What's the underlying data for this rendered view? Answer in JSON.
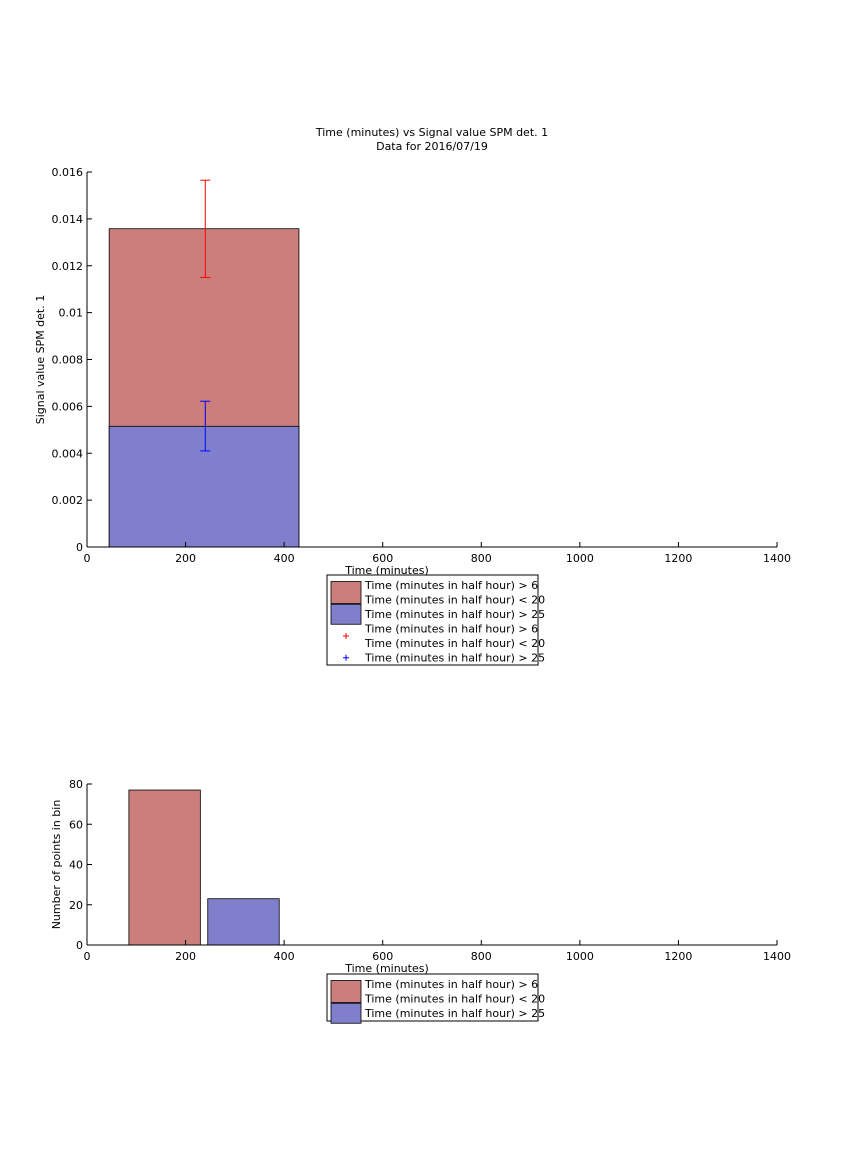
{
  "page": {
    "title_line1": "Time (minutes) vs Signal value SPM det. 1",
    "title_line2": "Data for 2016/07/19"
  },
  "colors": {
    "red_fill": "#ca7f7c",
    "blue_fill": "#7f7fcb",
    "red_err": "#ff0000",
    "blue_err": "#0000ff",
    "axis": "#000000"
  },
  "chart_data": [
    {
      "type": "bar",
      "stacked": true,
      "title": "Time (minutes) vs Signal value SPM det. 1",
      "subtitle": "Data for 2016/07/19",
      "xlabel": "Time (minutes)",
      "ylabel": "Signal value SPM det. 1",
      "xlim": [
        0,
        1400
      ],
      "ylim": [
        0,
        0.016
      ],
      "xticks": [
        0,
        200,
        400,
        600,
        800,
        1000,
        1200,
        1400
      ],
      "yticks": [
        0,
        0.002,
        0.004,
        0.006,
        0.008,
        0.01,
        0.012,
        0.014,
        0.016
      ],
      "xtick_labels": [
        "0",
        "200",
        "400",
        "600",
        "800",
        "1000",
        "1200",
        "1400"
      ],
      "ytick_labels": [
        "0",
        "0.002",
        "0.004",
        "0.006",
        "0.008",
        "0.01",
        "0.012",
        "0.014",
        "0.016"
      ],
      "bars": [
        {
          "series": 0,
          "x_start": 45,
          "x_end": 430,
          "y_base": 0,
          "y_top": 0.01358
        },
        {
          "series": 1,
          "x_start": 45,
          "x_end": 430,
          "y_base": 0,
          "y_top": 0.00515
        }
      ],
      "errorbars": [
        {
          "series": 0,
          "x": 240,
          "y_low": 0.0115,
          "y_high": 0.01565
        },
        {
          "series": 1,
          "x": 240,
          "y_low": 0.0041,
          "y_high": 0.00622
        }
      ],
      "series": [
        {
          "name": "Time (minutes in half hour) > 6\nTime (minutes in half hour) < 20",
          "color": "#ca7f7c"
        },
        {
          "name": "Time (minutes in half hour) > 25",
          "color": "#7f7fcb"
        }
      ],
      "legend": {
        "position": "below",
        "entries": [
          {
            "kind": "patch",
            "color": "#ca7f7c",
            "lines": [
              "Time (minutes in half hour) > 6",
              "Time (minutes in half hour) < 20"
            ]
          },
          {
            "kind": "patch",
            "color": "#7f7fcb",
            "lines": [
              "Time (minutes in half hour) > 25"
            ]
          },
          {
            "kind": "marker",
            "color": "#ff0000",
            "lines": [
              "Time (minutes in half hour) > 6",
              "Time (minutes in half hour) < 20"
            ]
          },
          {
            "kind": "marker",
            "color": "#0000ff",
            "lines": [
              "Time (minutes in half hour) > 25"
            ]
          }
        ]
      },
      "grid": false
    },
    {
      "type": "bar",
      "stacked": false,
      "title": "",
      "xlabel": "Time (minutes)",
      "ylabel": "Number of points in bin",
      "xlim": [
        0,
        1400
      ],
      "ylim": [
        0,
        80
      ],
      "xticks": [
        0,
        200,
        400,
        600,
        800,
        1000,
        1200,
        1400
      ],
      "yticks": [
        0,
        20,
        40,
        60,
        80
      ],
      "xtick_labels": [
        "0",
        "200",
        "400",
        "600",
        "800",
        "1000",
        "1200",
        "1400"
      ],
      "ytick_labels": [
        "0",
        "20",
        "40",
        "60",
        "80"
      ],
      "bars": [
        {
          "series": 0,
          "x_start": 85,
          "x_end": 230,
          "y_base": 0,
          "y_top": 77
        },
        {
          "series": 1,
          "x_start": 245,
          "x_end": 390,
          "y_base": 0,
          "y_top": 23
        }
      ],
      "series": [
        {
          "name": "Time (minutes in half hour) > 6\nTime (minutes in half hour) < 20",
          "color": "#ca7f7c"
        },
        {
          "name": "Time (minutes in half hour) > 25",
          "color": "#7f7fcb"
        }
      ],
      "legend": {
        "position": "below",
        "entries": [
          {
            "kind": "patch",
            "color": "#ca7f7c",
            "lines": [
              "Time (minutes in half hour) > 6",
              "Time (minutes in half hour) < 20"
            ]
          },
          {
            "kind": "patch",
            "color": "#7f7fcb",
            "lines": [
              "Time (minutes in half hour) > 25"
            ]
          }
        ]
      },
      "grid": false
    }
  ]
}
